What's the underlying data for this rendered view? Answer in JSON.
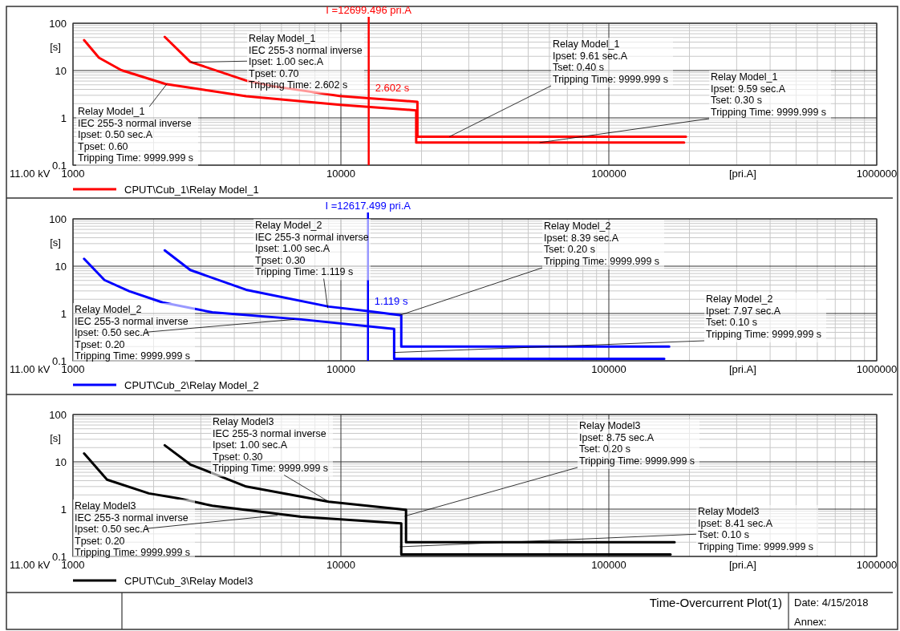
{
  "chart_data": [
    {
      "type": "line",
      "xlabel": "[pri.A]",
      "ylabel": "[s]",
      "log": "xy",
      "grid": true,
      "legend": "bottom",
      "xlim": [
        1000,
        1000000
      ],
      "ylim": [
        0.1,
        100
      ],
      "xticks": [
        1000,
        10000,
        100000,
        1000000
      ],
      "yticks": [
        0.1,
        1,
        10,
        100
      ],
      "series": [
        {
          "name": "CPUT\\Cub_1\\Relay Model_1",
          "color": "#ff0000",
          "x": [
            2200,
            2740,
            4490,
            5600,
            9900,
            12700,
            19300,
            19300,
            194000
          ],
          "values": [
            51.5,
            15.3,
            6.0,
            4.65,
            2.9,
            2.61,
            2.18,
            0.4,
            0.4
          ]
        },
        {
          "color": "#ff0000",
          "x": [
            1100,
            1250,
            1515,
            2215,
            4430,
            9930,
            19100,
            19100,
            191000
          ],
          "values": [
            44,
            18.7,
            10.2,
            5.2,
            2.88,
            1.89,
            1.44,
            0.3,
            0.3
          ]
        }
      ],
      "ref_lines": [
        {
          "axis": "x",
          "value": 12699.496,
          "label": "I =12699.496 pri.A",
          "color": "#ff0000"
        }
      ],
      "annotations": [
        {
          "text": "Relay Model_1\nIEC 255-3 normal inverse\nIpset: 1.00 sec.A\nTpset: 0.70\nTripping Time: 2.602 s",
          "x": 2750,
          "y": 15
        },
        {
          "text": "Relay Model_1\nIEC 255-3 normal inverse\nIpset: 0.50 sec.A\nTpset: 0.60\nTripping Time: 9999.999 s",
          "x": 2240,
          "y": 5.2
        },
        {
          "text": "Relay Model_1\nIpset: 9.61 sec.A\nTset: 0.40 s\nTripping Time: 9999.999 s",
          "x": 25400,
          "y": 0.4
        },
        {
          "text": "Relay Model_1\nIpset: 9.59 sec.A\nTset: 0.30 s\nTripping Time: 9999.999 s",
          "x": 55200,
          "y": 0.3
        },
        {
          "text": "2.602 s",
          "x": 12699.496,
          "y": 2.602
        },
        "11.00 kV"
      ]
    },
    {
      "type": "line",
      "xlabel": "[pri.A]",
      "ylabel": "[s]",
      "log": "xy",
      "grid": true,
      "legend": "bottom",
      "xlim": [
        1000,
        1000000
      ],
      "ylim": [
        0.1,
        100
      ],
      "xticks": [
        1000,
        10000,
        100000,
        1000000
      ],
      "yticks": [
        0.1,
        1,
        10,
        100
      ],
      "series": [
        {
          "name": "CPUT\\Cub_2\\Relay Model_2",
          "color": "#0000ff",
          "x": [
            2200,
            2740,
            4430,
            9000,
            12600,
            16800,
            16800,
            168000
          ],
          "values": [
            21.6,
            8.3,
            3.17,
            1.4,
            1.12,
            0.92,
            0.2,
            0.2
          ]
        },
        {
          "color": "#0000ff",
          "x": [
            1100,
            1310,
            1620,
            2160,
            3310,
            7110,
            15800,
            15800,
            161000
          ],
          "values": [
            14.3,
            5.1,
            2.96,
            1.71,
            1.06,
            0.75,
            0.47,
            0.11,
            0.11
          ]
        }
      ],
      "ref_lines": [
        {
          "axis": "x",
          "value": 12617.499,
          "label": "I =12617.499 pri.A",
          "color": "#0000ff"
        }
      ],
      "annotations": [
        {
          "text": "Relay Model_2\nIEC 255-3 normal inverse\nIpset: 1.00 sec.A\nTpset: 0.30\nTripping Time: 1.119 s",
          "x": 8930,
          "y": 1.3
        },
        {
          "text": "Relay Model_2\nIEC 255-3 normal inverse\nIpset: 0.50 sec.A\nTpset: 0.20\nTripping Time: 9999.999 s",
          "x": 6700,
          "y": 0.75
        },
        {
          "text": "Relay Model_2\nIpset: 8.39 sec.A\nTset: 0.20 s\nTripping Time: 9999.999 s",
          "x": 16600,
          "y": 0.92
        },
        {
          "text": "Relay Model_2\nIpset: 7.97 sec.A\nTset: 0.10 s\nTripping Time: 9999.999 s",
          "x": 15800,
          "y": 0.15
        },
        {
          "text": "1.119 s",
          "x": 12617.499,
          "y": 1.119
        },
        "11.00 kV"
      ]
    },
    {
      "type": "line",
      "xlabel": "[pri.A]",
      "ylabel": "[s]",
      "log": "xy",
      "grid": true,
      "legend": "bottom",
      "xlim": [
        1000,
        1000000
      ],
      "ylim": [
        0.1,
        100
      ],
      "xticks": [
        1000,
        10000,
        100000,
        1000000
      ],
      "yticks": [
        0.1,
        1,
        10,
        100
      ],
      "series": [
        {
          "name": "CPUT\\Cub_3\\Relay Model3",
          "color": "#000000",
          "x": [
            2200,
            2740,
            4430,
            9000,
            17400,
            17500,
            17500,
            176000
          ],
          "values": [
            22.4,
            8.8,
            3.0,
            1.44,
            0.97,
            0.97,
            0.2,
            0.2
          ]
        },
        {
          "color": "#000000",
          "x": [
            1100,
            1340,
            1920,
            2470,
            3310,
            7110,
            16800,
            16800,
            170000
          ],
          "values": [
            15,
            4.2,
            2.15,
            1.7,
            1.18,
            0.69,
            0.5,
            0.11,
            0.11
          ]
        }
      ],
      "annotations": [
        {
          "text": "Relay Model3\nIEC 255-3 normal inverse\nIpset: 1.00 sec.A\nTpset: 0.30\nTripping Time: 9999.999 s",
          "x": 9000,
          "y": 1.44
        },
        {
          "text": "Relay Model3\nIEC 255-3 normal inverse\nIpset: 0.50 sec.A\nTpset: 0.20\nTripping Time: 9999.999 s",
          "x": 5800,
          "y": 0.74
        },
        {
          "text": "Relay Model3\nIpset: 8.75 sec.A\nTset: 0.20 s\nTripping Time: 9999.999 s",
          "x": 17300,
          "y": 0.71
        },
        {
          "text": "Relay Model3\nIpset: 8.41 sec.A\nTset: 0.10 s\nTripping Time: 9999.999 s",
          "x": 16600,
          "y": 0.16
        },
        "11.00 kV"
      ]
    },
    {
      "type": "other",
      "title": "Time-Overcurrent Plot(1)",
      "annotations": [
        "Date: 4/15/2018",
        "Annex:"
      ]
    }
  ]
}
